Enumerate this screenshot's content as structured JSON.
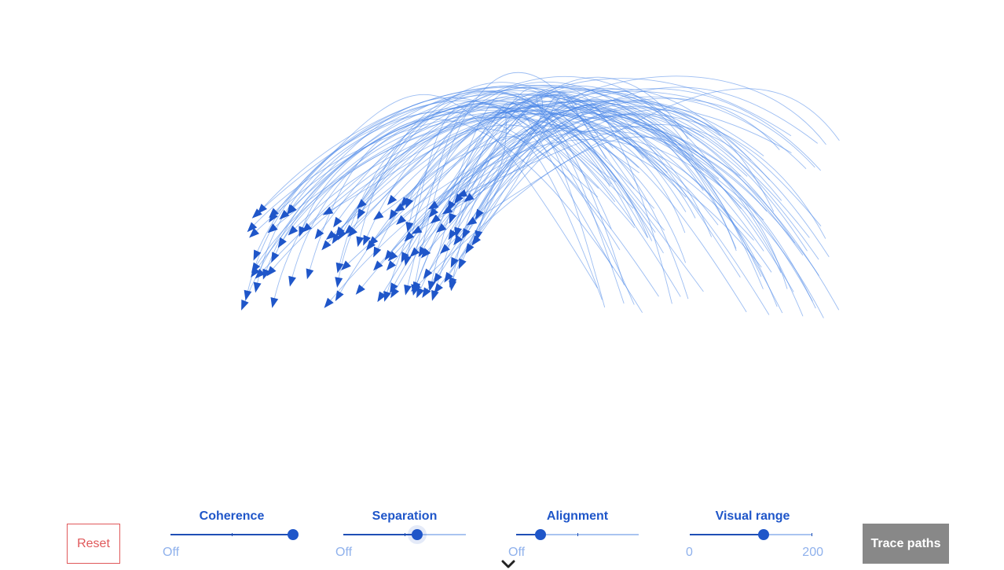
{
  "controls": {
    "reset_label": "Reset",
    "trace_label": "Trace paths",
    "sliders": [
      {
        "label": "Coherence",
        "min_label": "Off",
        "max_label": "",
        "value": 1.0
      },
      {
        "label": "Separation",
        "min_label": "Off",
        "max_label": "",
        "value": 0.6
      },
      {
        "label": "Alignment",
        "min_label": "Off",
        "max_label": "",
        "value": 0.2
      },
      {
        "label": "Visual range",
        "min_label": "0",
        "max_label": "200",
        "value": 0.6
      }
    ]
  },
  "colors": {
    "accent": "#1f56c9",
    "trail": "#4a86e8",
    "reset": "#e0585a",
    "trace_button_bg": "#888888",
    "muted_label": "#8fb1ec"
  },
  "icons": {
    "scroll_hint": "chevron-down-icon"
  }
}
